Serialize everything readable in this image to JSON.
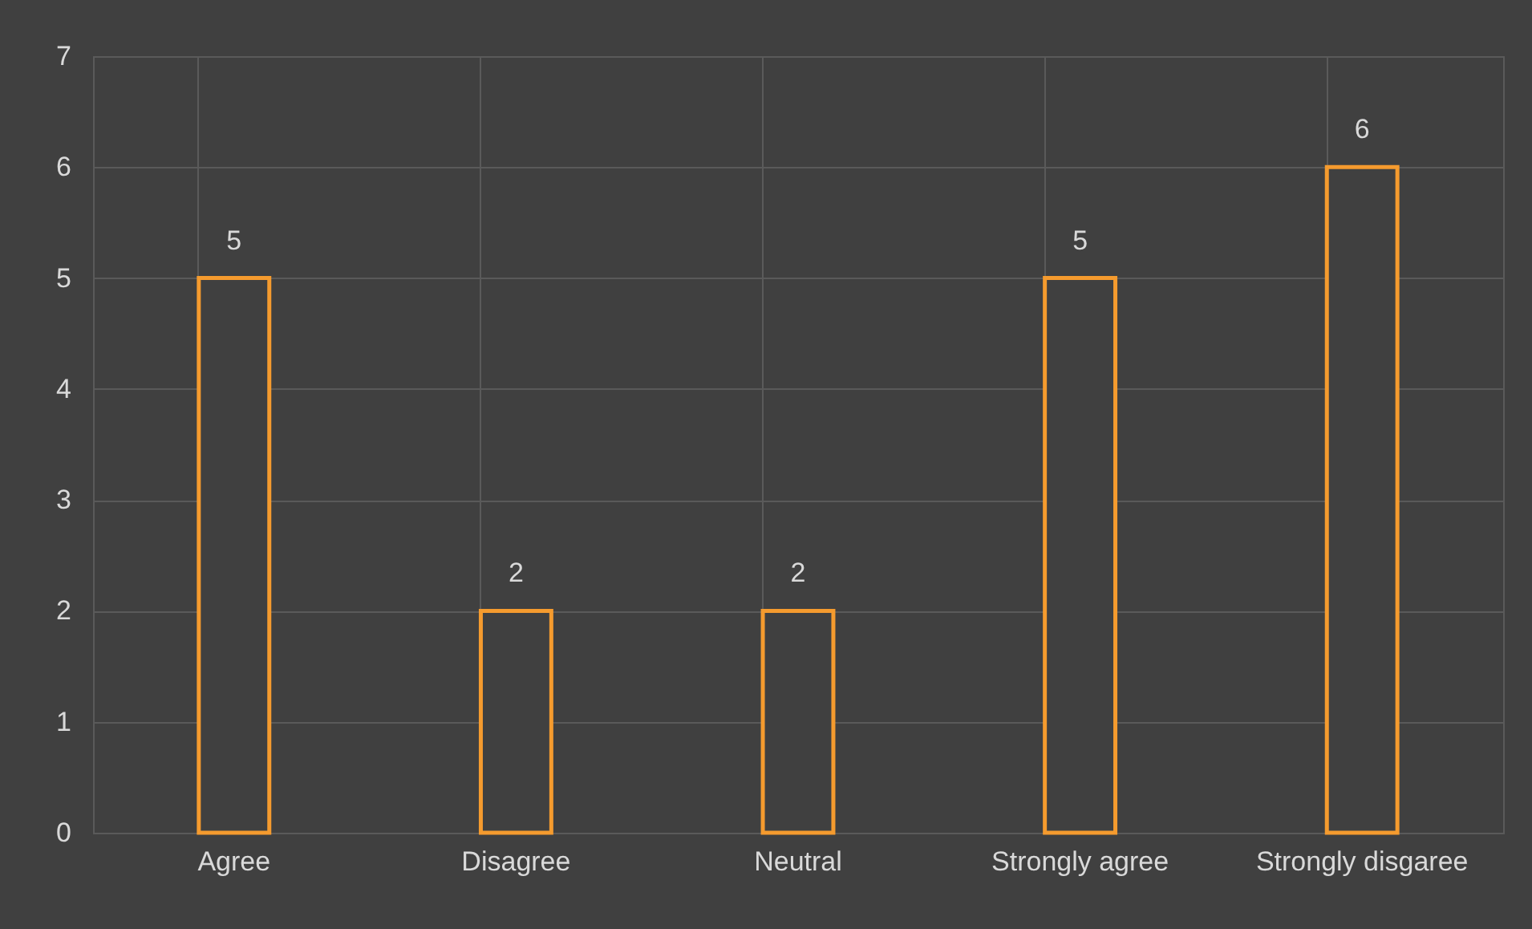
{
  "chart_data": {
    "type": "bar",
    "categories": [
      "Agree",
      "Disagree",
      "Neutral",
      "Strongly agree",
      "Strongly disgaree"
    ],
    "values": [
      5,
      2,
      2,
      5,
      6
    ],
    "color": "#f59b2e",
    "ylim": [
      0,
      7
    ],
    "yticks": [
      0,
      1,
      2,
      3,
      4,
      5,
      6,
      7
    ],
    "grid": true,
    "data_labels": true
  }
}
